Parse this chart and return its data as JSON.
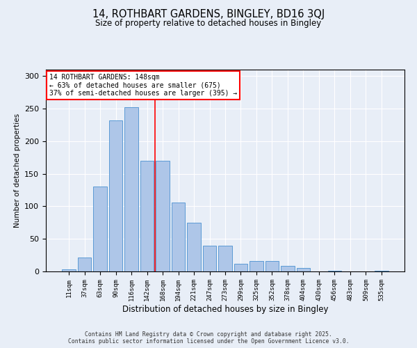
{
  "title1": "14, ROTHBART GARDENS, BINGLEY, BD16 3QJ",
  "title2": "Size of property relative to detached houses in Bingley",
  "xlabel": "Distribution of detached houses by size in Bingley",
  "ylabel": "Number of detached properties",
  "categories": [
    "11sqm",
    "37sqm",
    "63sqm",
    "90sqm",
    "116sqm",
    "142sqm",
    "168sqm",
    "194sqm",
    "221sqm",
    "247sqm",
    "273sqm",
    "299sqm",
    "325sqm",
    "352sqm",
    "378sqm",
    "404sqm",
    "430sqm",
    "456sqm",
    "483sqm",
    "509sqm",
    "535sqm"
  ],
  "values": [
    3,
    21,
    130,
    232,
    252,
    170,
    170,
    106,
    75,
    40,
    40,
    12,
    16,
    16,
    9,
    5,
    0,
    1,
    0,
    0,
    1
  ],
  "bar_color": "#aec6e8",
  "bar_edge_color": "#5b9bd5",
  "vline_x": 5.5,
  "vline_color": "red",
  "annotation_text": "14 ROTHBART GARDENS: 148sqm\n← 63% of detached houses are smaller (675)\n37% of semi-detached houses are larger (395) →",
  "annotation_box_color": "white",
  "annotation_box_edge": "red",
  "footer1": "Contains HM Land Registry data © Crown copyright and database right 2025.",
  "footer2": "Contains public sector information licensed under the Open Government Licence v3.0.",
  "background_color": "#e8eef7",
  "ylim": [
    0,
    310
  ],
  "yticks": [
    0,
    50,
    100,
    150,
    200,
    250,
    300
  ]
}
